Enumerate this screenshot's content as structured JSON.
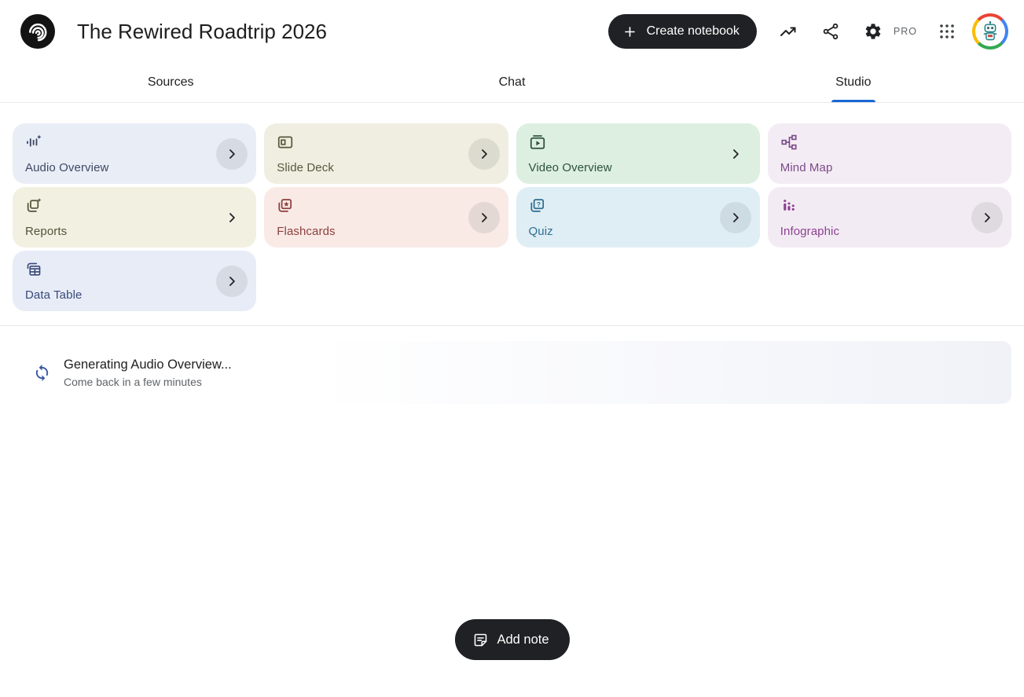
{
  "header": {
    "title": "The Rewired Roadtrip 2026",
    "create_notebook_label": "Create notebook",
    "plan_badge": "PRO"
  },
  "tabs": [
    {
      "label": "Sources",
      "active": false
    },
    {
      "label": "Chat",
      "active": false
    },
    {
      "label": "Studio",
      "active": true
    }
  ],
  "studio": {
    "cards": [
      {
        "label": "Audio Overview",
        "icon": "audio-waveform-sparkle-icon",
        "bg": "#e9edf6",
        "fg": "#3e4963",
        "chevron": "circle"
      },
      {
        "label": "Slide Deck",
        "icon": "slide-deck-icon",
        "bg": "#efeee1",
        "fg": "#5a573c",
        "chevron": "circle"
      },
      {
        "label": "Video Overview",
        "icon": "video-overview-icon",
        "bg": "#ddefe1",
        "fg": "#2c5138",
        "chevron": "plain"
      },
      {
        "label": "Mind Map",
        "icon": "mind-map-icon",
        "bg": "#f4ecf4",
        "fg": "#7b4a89",
        "chevron": "none"
      },
      {
        "label": "Reports",
        "icon": "reports-sparkle-icon",
        "bg": "#f2f0e1",
        "fg": "#55523a",
        "chevron": "plain"
      },
      {
        "label": "Flashcards",
        "icon": "flashcards-star-icon",
        "bg": "#f9eae6",
        "fg": "#8d403c",
        "chevron": "circle"
      },
      {
        "label": "Quiz",
        "icon": "quiz-question-icon",
        "bg": "#dfeef5",
        "fg": "#2f6e8f",
        "chevron": "circle"
      },
      {
        "label": "Infographic",
        "icon": "infographic-bars-icon",
        "bg": "#f3ebf3",
        "fg": "#8a4190",
        "chevron": "circle"
      },
      {
        "label": "Data Table",
        "icon": "data-table-icon",
        "bg": "#e8ecf7",
        "fg": "#394a7b",
        "chevron": "circle"
      }
    ]
  },
  "status": {
    "title": "Generating Audio Overview...",
    "subtitle": "Come back in a few minutes"
  },
  "footer": {
    "add_note_label": "Add note"
  },
  "colors": {
    "accent_blue": "#1967d2",
    "button_black": "#202124"
  }
}
